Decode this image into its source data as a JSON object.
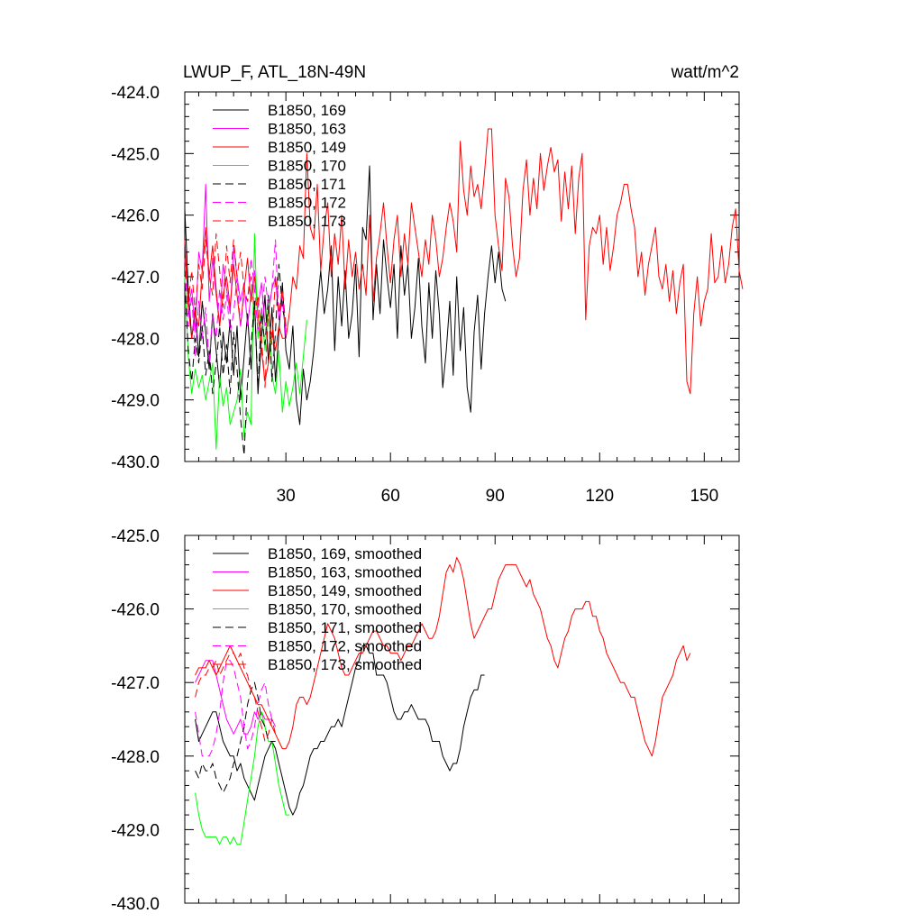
{
  "figure": {
    "title_left": "LWUP_F, ATL_18N-49N",
    "title_right": "watt/m^2"
  },
  "chart_data": [
    {
      "type": "line",
      "title": "LWUP_F, ATL_18N-49N",
      "units": "watt/m^2",
      "xlabel": "",
      "ylabel": "",
      "xlim": [
        1,
        160
      ],
      "ylim": [
        -430,
        -424
      ],
      "grid": false,
      "legend_position": "top-left",
      "xticks": [
        {
          "v": 30,
          "label": "30"
        },
        {
          "v": 60,
          "label": "60"
        },
        {
          "v": 90,
          "label": "90"
        },
        {
          "v": 120,
          "label": "120"
        },
        {
          "v": 150,
          "label": "150"
        }
      ],
      "yticks": [
        {
          "v": -424,
          "label": "-424.0"
        },
        {
          "v": -425,
          "label": "-425.0"
        },
        {
          "v": -426,
          "label": "-426.0"
        },
        {
          "v": -427,
          "label": "-427.0"
        },
        {
          "v": -428,
          "label": "-428.0"
        },
        {
          "v": -429,
          "label": "-429.0"
        },
        {
          "v": -430,
          "label": "-430.0"
        }
      ],
      "series": [
        {
          "name": "B1850, 169",
          "color": "#000000",
          "dash": "solid",
          "values": [
            -425.9,
            -427.2,
            -428.0,
            -427.5,
            -428.3,
            -427.4,
            -427.9,
            -428.5,
            -427.6,
            -428.2,
            -428.8,
            -427.9,
            -428.4,
            -427.7,
            -428.6,
            -427.8,
            -429.0,
            -428.3,
            -427.6,
            -428.5,
            -427.4,
            -428.9,
            -428.0,
            -427.3,
            -428.4,
            -427.5,
            -428.7,
            -427.9,
            -427.1,
            -428.2,
            -428.5,
            -427.8,
            -429.0,
            -429.4,
            -428.5,
            -429.0,
            -428.7,
            -428.2,
            -427.5,
            -426.9,
            -427.6,
            -427.2,
            -426.5,
            -428.2,
            -427.0,
            -427.8,
            -426.9,
            -428.0,
            -427.6,
            -426.8,
            -428.3,
            -426.2,
            -426.4,
            -425.2,
            -427.7,
            -426.8,
            -427.6,
            -426.4,
            -427.0,
            -427.5,
            -426.8,
            -428.0,
            -426.5,
            -427.3,
            -426.8,
            -428.0,
            -427.5,
            -426.7,
            -427.8,
            -428.4,
            -427.1,
            -428.0,
            -426.9,
            -427.6,
            -428.8,
            -428.2,
            -427.4,
            -428.6,
            -427.0,
            -428.2,
            -427.5,
            -428.8,
            -429.2,
            -427.9,
            -427.3,
            -428.5,
            -427.6,
            -427.0,
            -426.5,
            -427.1,
            -426.6,
            -427.2,
            -427.4
          ]
        },
        {
          "name": "B1850, 163",
          "color": "#ff00ff",
          "dash": "solid",
          "values": [
            -426.4,
            -427.5,
            -427.2,
            -427.9,
            -426.6,
            -426.9,
            -425.5,
            -427.4,
            -426.7,
            -427.3,
            -427.8,
            -426.8,
            -427.2,
            -427.6,
            -426.5,
            -427.0,
            -427.4,
            -427.1,
            -427.8,
            -427.3,
            -426.9,
            -427.5,
            -427.1,
            -427.8,
            -427.6,
            -427.2,
            -427.0,
            -427.7,
            -427.4,
            -427.9
          ]
        },
        {
          "name": "B1850, 149",
          "color": "#ff0000",
          "dash": "solid",
          "values": [
            -426.4,
            -427.5,
            -428.0,
            -427.6,
            -427.8,
            -426.9,
            -426.2,
            -427.0,
            -426.5,
            -427.2,
            -427.8,
            -427.3,
            -427.0,
            -427.5,
            -426.8,
            -427.3,
            -427.8,
            -427.2,
            -426.7,
            -427.4,
            -427.0,
            -427.6,
            -428.2,
            -428.7,
            -428.4,
            -427.9,
            -428.2,
            -427.8,
            -428.0,
            -428.0,
            -427.6,
            -427.0,
            -427.2,
            -426.5,
            -426.7,
            -425.0,
            -426.2,
            -426.4,
            -425.5,
            -426.9,
            -426.2,
            -425.8,
            -427.0,
            -426.3,
            -426.8,
            -426.0,
            -427.2,
            -426.4,
            -427.0,
            -426.6,
            -427.2,
            -426.8,
            -427.3,
            -426.0,
            -427.4,
            -426.7,
            -426.3,
            -425.8,
            -426.5,
            -427.1,
            -426.4,
            -426.0,
            -427.0,
            -426.3,
            -426.8,
            -425.8,
            -426.2,
            -426.6,
            -427.0,
            -426.4,
            -426.8,
            -426.0,
            -426.4,
            -427.0,
            -426.7,
            -426.2,
            -425.8,
            -426.1,
            -426.6,
            -424.8,
            -425.6,
            -426.0,
            -425.2,
            -425.7,
            -425.5,
            -425.9,
            -425.3,
            -424.6,
            -424.6,
            -426.0,
            -426.5,
            -426.9,
            -425.4,
            -425.7,
            -426.5,
            -427.0,
            -426.7,
            -425.6,
            -425.1,
            -426.0,
            -425.4,
            -425.9,
            -425.0,
            -425.6,
            -425.2,
            -424.9,
            -425.3,
            -425.1,
            -426.1,
            -425.3,
            -425.9,
            -425.2,
            -426.3,
            -425.4,
            -425.0,
            -427.7,
            -426.5,
            -426.2,
            -426.3,
            -426.0,
            -426.8,
            -426.2,
            -426.9,
            -426.5,
            -426.0,
            -425.8,
            -425.5,
            -425.5,
            -425.9,
            -426.2,
            -427.0,
            -426.6,
            -427.3,
            -426.8,
            -426.5,
            -426.2,
            -427.0,
            -427.2,
            -426.8,
            -427.4,
            -426.9,
            -427.6,
            -427.1,
            -426.8,
            -428.7,
            -428.9,
            -427.6,
            -427.0,
            -427.8,
            -427.4,
            -427.2,
            -426.3,
            -427.1,
            -427.0,
            -426.5,
            -427.1,
            -426.8,
            -426.2,
            -425.9,
            -426.9,
            -427.2
          ]
        },
        {
          "name": "B1850, 170",
          "color": "#00ff00",
          "dash": "solid",
          "values": [
            -427.0,
            -428.3,
            -428.9,
            -428.5,
            -428.8,
            -428.6,
            -429.0,
            -428.7,
            -428.4,
            -429.8,
            -428.6,
            -429.1,
            -428.8,
            -429.4,
            -429.2,
            -429.0,
            -428.5,
            -429.6,
            -429.2,
            -429.4,
            -426.3,
            -428.0,
            -427.5,
            -428.2,
            -427.4,
            -428.6,
            -428.9,
            -428.2,
            -429.2,
            -428.7,
            -429.1,
            -428.8,
            -428.4,
            -428.9,
            -428.3,
            -427.7
          ]
        },
        {
          "name": "B1850, 171",
          "color": "#000000",
          "dash": "dashed",
          "values": [
            -427.1,
            -428.2,
            -428.7,
            -428.0,
            -428.4,
            -427.8,
            -428.6,
            -428.2,
            -428.9,
            -428.4,
            -427.8,
            -428.6,
            -428.1,
            -428.9,
            -427.9,
            -428.5,
            -429.3,
            -429.9,
            -428.7,
            -428.1,
            -427.4,
            -428.8,
            -427.6,
            -428.1,
            -427.3,
            -428.7,
            -427.9,
            -426.8,
            -427.5,
            -427.8
          ]
        },
        {
          "name": "B1850, 172",
          "color": "#ff00ff",
          "dash": "dashed",
          "values": [
            -426.7,
            -427.8,
            -427.3,
            -428.3,
            -427.4,
            -428.0,
            -427.5,
            -428.4,
            -427.6,
            -428.0,
            -427.2,
            -427.7,
            -427.3,
            -427.9,
            -427.6,
            -427.0,
            -427.8,
            -427.3,
            -427.4,
            -426.7,
            -427.2,
            -427.9,
            -427.6,
            -427.0,
            -427.5,
            -427.2,
            -426.4,
            -427.7,
            -427.3,
            -428.0
          ]
        },
        {
          "name": "B1850, 173",
          "color": "#ff0000",
          "dash": "dashed",
          "values": [
            -426.7,
            -427.4,
            -426.9,
            -427.6,
            -426.8,
            -427.2,
            -426.4,
            -427.0,
            -427.3,
            -426.3,
            -426.9,
            -427.5,
            -426.5,
            -427.1,
            -426.4,
            -427.0,
            -426.6,
            -427.2,
            -427.4,
            -427.0,
            -427.6,
            -427.3,
            -428.0,
            -428.8,
            -427.5,
            -428.1,
            -427.0,
            -427.6,
            -427.2,
            -427.8
          ]
        }
      ]
    },
    {
      "type": "line",
      "title": "",
      "xlabel": "",
      "ylabel": "",
      "xlim": [
        1,
        160
      ],
      "ylim": [
        -430,
        -425
      ],
      "grid": false,
      "legend_position": "top-left",
      "xticks": [
        {
          "v": 30,
          "label": ""
        },
        {
          "v": 60,
          "label": ""
        },
        {
          "v": 90,
          "label": ""
        },
        {
          "v": 120,
          "label": ""
        },
        {
          "v": 150,
          "label": ""
        }
      ],
      "yticks": [
        {
          "v": -425,
          "label": "-425.0"
        },
        {
          "v": -426,
          "label": "-426.0"
        },
        {
          "v": -427,
          "label": "-427.0"
        },
        {
          "v": -428,
          "label": "-428.0"
        },
        {
          "v": -429,
          "label": "-429.0"
        },
        {
          "v": -430,
          "label": "-430.0"
        }
      ],
      "series": [
        {
          "name": "B1850, 169, smoothed",
          "color": "#000000",
          "dash": "solid",
          "x_start": 4,
          "values": [
            -427.5,
            -427.8,
            -427.7,
            -427.6,
            -427.5,
            -427.4,
            -427.4,
            -427.6,
            -427.8,
            -427.9,
            -428.0,
            -428.0,
            -428.2,
            -428.1,
            -428.3,
            -428.4,
            -428.5,
            -428.6,
            -428.4,
            -428.2,
            -428.0,
            -427.9,
            -427.8,
            -427.9,
            -428.1,
            -428.3,
            -428.5,
            -428.7,
            -428.8,
            -428.7,
            -428.5,
            -428.4,
            -428.2,
            -428.0,
            -427.9,
            -427.9,
            -427.8,
            -427.8,
            -427.7,
            -427.6,
            -427.6,
            -427.5,
            -427.6,
            -427.4,
            -427.2,
            -427.0,
            -426.8,
            -426.7,
            -426.5,
            -426.5,
            -426.6,
            -426.6,
            -426.9,
            -426.9,
            -426.9,
            -427.0,
            -427.2,
            -427.4,
            -427.5,
            -427.5,
            -427.4,
            -427.4,
            -427.3,
            -427.4,
            -427.5,
            -427.5,
            -427.5,
            -427.6,
            -427.8,
            -427.8,
            -427.8,
            -428.0,
            -428.1,
            -428.2,
            -428.1,
            -428.1,
            -427.9,
            -427.6,
            -427.4,
            -427.2,
            -427.1,
            -427.1,
            -426.9,
            -426.9
          ]
        },
        {
          "name": "B1850, 163, smoothed",
          "color": "#ff00ff",
          "dash": "solid",
          "x_start": 4,
          "values": [
            -427.0,
            -426.9,
            -426.8,
            -426.7,
            -426.7,
            -426.7,
            -426.9,
            -427.1,
            -427.3,
            -427.5,
            -427.6,
            -427.7,
            -427.6,
            -427.5,
            -427.7,
            -427.7,
            -427.6,
            -427.4,
            -427.5,
            -427.4,
            -427.5,
            -427.5,
            -427.5,
            -427.6
          ]
        },
        {
          "name": "B1850, 149, smoothed",
          "color": "#ff0000",
          "dash": "solid",
          "x_start": 4,
          "values": [
            -426.9,
            -426.8,
            -426.8,
            -426.8,
            -426.7,
            -426.8,
            -426.9,
            -426.8,
            -426.7,
            -426.6,
            -426.5,
            -426.6,
            -426.7,
            -426.8,
            -426.9,
            -427.0,
            -427.1,
            -427.2,
            -427.3,
            -427.3,
            -427.4,
            -427.5,
            -427.6,
            -427.7,
            -427.8,
            -427.9,
            -427.9,
            -427.8,
            -427.6,
            -427.3,
            -427.2,
            -427.2,
            -427.3,
            -427.2,
            -427.0,
            -426.8,
            -426.6,
            -426.4,
            -426.2,
            -426.3,
            -426.4,
            -426.6,
            -426.8,
            -426.9,
            -426.9,
            -426.8,
            -426.7,
            -426.6,
            -426.6,
            -426.5,
            -426.4,
            -426.3,
            -426.3,
            -426.4,
            -426.5,
            -426.5,
            -426.6,
            -426.6,
            -426.6,
            -426.7,
            -426.6,
            -426.5,
            -426.5,
            -426.4,
            -426.3,
            -426.2,
            -426.3,
            -426.4,
            -426.4,
            -426.3,
            -426.1,
            -425.8,
            -425.5,
            -425.4,
            -425.5,
            -425.3,
            -425.4,
            -425.6,
            -425.9,
            -426.2,
            -426.4,
            -426.3,
            -426.2,
            -426.1,
            -426.0,
            -426.0,
            -425.8,
            -425.6,
            -425.5,
            -425.4,
            -425.4,
            -425.4,
            -425.4,
            -425.5,
            -425.6,
            -425.7,
            -425.6,
            -425.8,
            -425.9,
            -426.0,
            -426.2,
            -426.4,
            -426.5,
            -426.7,
            -426.8,
            -426.6,
            -426.4,
            -426.3,
            -426.1,
            -426.0,
            -426.0,
            -426.0,
            -425.9,
            -425.9,
            -426.1,
            -426.1,
            -426.3,
            -426.4,
            -426.6,
            -426.7,
            -426.8,
            -426.9,
            -427.0,
            -427.0,
            -427.1,
            -427.2,
            -427.2,
            -427.4,
            -427.6,
            -427.8,
            -427.9,
            -428.0,
            -427.8,
            -427.5,
            -427.2,
            -427.1,
            -427.0,
            -426.9,
            -426.7,
            -426.6,
            -426.5,
            -426.7,
            -426.6
          ]
        },
        {
          "name": "B1850, 170, smoothed",
          "color": "#00ff00",
          "dash": "solid",
          "x_start": 4,
          "values": [
            -428.5,
            -428.8,
            -429.0,
            -429.1,
            -429.1,
            -429.1,
            -429.1,
            -429.2,
            -429.1,
            -429.1,
            -429.2,
            -429.1,
            -429.2,
            -429.2,
            -428.9,
            -428.6,
            -428.3,
            -428.0,
            -427.6,
            -427.4,
            -427.6,
            -427.8,
            -427.8,
            -428.1,
            -428.4,
            -428.6,
            -428.8,
            -428.8
          ]
        },
        {
          "name": "B1850, 171, smoothed",
          "color": "#000000",
          "dash": "dashed",
          "x_start": 4,
          "values": [
            -428.2,
            -428.3,
            -428.1,
            -428.2,
            -428.2,
            -428.1,
            -428.3,
            -428.4,
            -428.5,
            -428.4,
            -428.3,
            -428.1,
            -428.0,
            -427.8,
            -427.6,
            -427.3,
            -427.1,
            -427.0,
            -427.2,
            -427.5,
            -427.6,
            -427.8,
            -427.8,
            -427.8
          ]
        },
        {
          "name": "B1850, 172, smoothed",
          "color": "#ff00ff",
          "dash": "dashed",
          "x_start": 4,
          "values": [
            -427.4,
            -427.7,
            -428.0,
            -428.0,
            -428.0,
            -427.9,
            -427.7,
            -427.4,
            -427.0,
            -426.7,
            -426.7,
            -426.8,
            -427.0,
            -427.2,
            -427.6,
            -427.9,
            -427.8,
            -427.6,
            -427.3,
            -427.1,
            -427.0,
            -427.3,
            -427.5,
            -427.5
          ]
        },
        {
          "name": "B1850, 173, smoothed",
          "color": "#ff0000",
          "dash": "dashed",
          "x_start": 4,
          "values": [
            -427.2,
            -427.0,
            -426.9,
            -426.9,
            -426.8,
            -426.8,
            -426.7,
            -426.9,
            -426.8,
            -426.7,
            -426.6,
            -426.6,
            -426.7,
            -426.6,
            -426.8,
            -426.9,
            -427.1,
            -427.2,
            -427.4,
            -427.6,
            -427.8,
            -427.7,
            -427.5,
            -427.7
          ]
        }
      ]
    }
  ]
}
